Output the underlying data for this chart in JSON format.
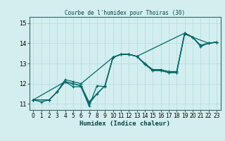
{
  "title": "Courbe de l'humidex pour Thoiras (30)",
  "xlabel": "Humidex (Indice chaleur)",
  "bg_color": "#d4eef0",
  "line_color": "#006666",
  "grid_color": "#b8dde0",
  "ylim": [
    10.7,
    15.3
  ],
  "xlim": [
    -0.5,
    23.5
  ],
  "yticks": [
    11,
    12,
    13,
    14,
    15
  ],
  "xticks": [
    0,
    1,
    2,
    3,
    4,
    5,
    6,
    7,
    8,
    9,
    10,
    11,
    12,
    13,
    14,
    15,
    16,
    17,
    18,
    19,
    20,
    21,
    22,
    23
  ],
  "lines": [
    {
      "x": [
        0,
        1,
        2,
        3,
        4,
        5,
        6,
        7,
        8,
        9,
        10,
        11,
        12,
        13,
        14,
        15,
        16,
        17,
        18,
        19,
        20,
        21,
        22,
        23
      ],
      "y": [
        11.2,
        11.1,
        11.2,
        11.6,
        12.1,
        12.0,
        11.9,
        11.0,
        11.5,
        11.9,
        13.3,
        13.45,
        13.45,
        13.35,
        13.0,
        12.7,
        12.7,
        12.6,
        12.6,
        14.5,
        14.3,
        13.85,
        14.0,
        14.05
      ]
    },
    {
      "x": [
        0,
        2,
        3,
        4,
        5,
        6,
        7,
        8,
        9,
        10,
        11,
        12,
        13,
        14,
        15,
        16,
        17,
        18,
        19,
        20,
        21,
        22,
        23
      ],
      "y": [
        11.2,
        11.2,
        11.6,
        12.1,
        12.0,
        11.9,
        11.1,
        11.5,
        11.9,
        13.3,
        13.45,
        13.45,
        13.35,
        12.95,
        12.65,
        12.65,
        12.55,
        12.55,
        14.45,
        14.3,
        13.9,
        14.0,
        14.05
      ]
    },
    {
      "x": [
        0,
        2,
        3,
        4,
        5,
        6,
        10,
        11,
        12,
        13,
        19,
        20,
        22,
        23
      ],
      "y": [
        11.2,
        11.2,
        11.6,
        12.2,
        12.1,
        12.0,
        13.3,
        13.45,
        13.45,
        13.35,
        14.5,
        14.3,
        14.0,
        14.05
      ]
    },
    {
      "x": [
        0,
        4,
        5,
        6,
        7,
        8,
        9,
        10,
        11,
        12,
        13,
        14,
        15,
        16,
        17,
        18,
        19,
        20,
        21,
        22,
        23
      ],
      "y": [
        11.2,
        12.1,
        11.85,
        11.85,
        10.9,
        11.9,
        11.85,
        13.3,
        13.45,
        13.45,
        13.35,
        13.0,
        12.65,
        12.65,
        12.55,
        12.55,
        14.5,
        14.3,
        13.85,
        14.0,
        14.05
      ]
    }
  ]
}
